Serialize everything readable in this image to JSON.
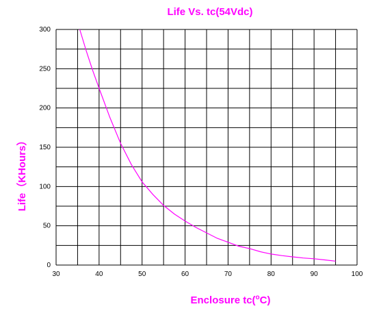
{
  "chart_data": {
    "type": "line",
    "title": "Life Vs. tc(54Vdc)",
    "xlabel": "Enclosure  tc(",
    "xlabel_sup": "o",
    "xlabel_tail": "C)",
    "ylabel": "Life（KHours）",
    "xlim": [
      30,
      100
    ],
    "ylim": [
      0,
      300
    ],
    "x_ticks": [
      30,
      40,
      50,
      60,
      70,
      80,
      90,
      100
    ],
    "y_ticks": [
      0,
      50,
      100,
      150,
      200,
      250,
      300
    ],
    "grid": true,
    "colors": {
      "curve": "#ff00ff",
      "grid": "#000000",
      "text": "#ff00ff"
    },
    "series": [
      {
        "x": [
          35.5,
          37,
          38.5,
          40,
          42.5,
          45,
          47.5,
          50,
          52.5,
          55,
          57.5,
          60,
          62.5,
          65,
          67.5,
          70,
          72.5,
          75,
          77.5,
          80,
          82.5,
          85,
          87.5,
          90,
          92.5,
          95
        ],
        "values": [
          300,
          273,
          248,
          225,
          188,
          155,
          128,
          106,
          90,
          76,
          65,
          56,
          48,
          41,
          34,
          29,
          24,
          21,
          17,
          14,
          12,
          10.5,
          9,
          8,
          6.5,
          5
        ]
      }
    ]
  }
}
